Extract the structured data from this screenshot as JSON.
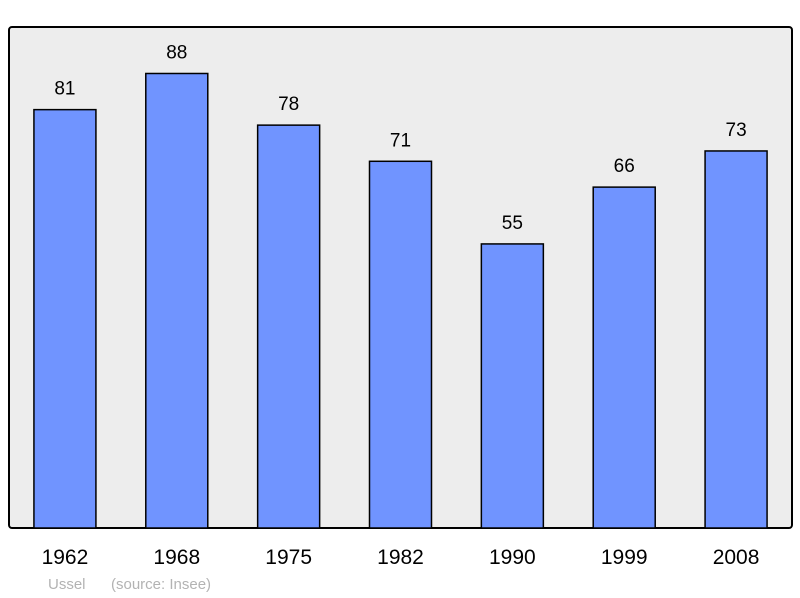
{
  "chart_data": {
    "type": "bar",
    "categories": [
      "1962",
      "1968",
      "1975",
      "1982",
      "1990",
      "1999",
      "2008"
    ],
    "values": [
      81,
      88,
      78,
      71,
      55,
      66,
      73
    ],
    "ylim": [
      0,
      97
    ],
    "grid": false,
    "colors": {
      "bar": "#7094ff",
      "background": "#ededed",
      "border": "#000000"
    },
    "caption": {
      "place": "Ussel",
      "source": "(source: Insee)"
    }
  }
}
